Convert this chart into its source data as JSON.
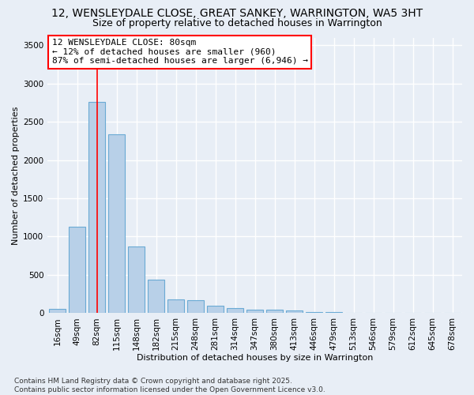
{
  "title": "12, WENSLEYDALE CLOSE, GREAT SANKEY, WARRINGTON, WA5 3HT",
  "subtitle": "Size of property relative to detached houses in Warrington",
  "xlabel": "Distribution of detached houses by size in Warrington",
  "ylabel": "Number of detached properties",
  "categories": [
    "16sqm",
    "49sqm",
    "82sqm",
    "115sqm",
    "148sqm",
    "182sqm",
    "215sqm",
    "248sqm",
    "281sqm",
    "314sqm",
    "347sqm",
    "380sqm",
    "413sqm",
    "446sqm",
    "479sqm",
    "513sqm",
    "546sqm",
    "579sqm",
    "612sqm",
    "645sqm",
    "678sqm"
  ],
  "values": [
    55,
    1130,
    2760,
    2340,
    870,
    440,
    175,
    165,
    95,
    70,
    50,
    45,
    30,
    18,
    10,
    8,
    5,
    3,
    2,
    1,
    1
  ],
  "bar_color": "#b8d0e8",
  "bar_edge_color": "#6aaad4",
  "annotation_line_color": "red",
  "annotation_line_idx": 2,
  "annotation_box_text_line1": "12 WENSLEYDALE CLOSE: 80sqm",
  "annotation_box_text_line2": "← 12% of detached houses are smaller (960)",
  "annotation_box_text_line3": "87% of semi-detached houses are larger (6,946) →",
  "ylim": [
    0,
    3600
  ],
  "yticks": [
    0,
    500,
    1000,
    1500,
    2000,
    2500,
    3000,
    3500
  ],
  "footnote": "Contains HM Land Registry data © Crown copyright and database right 2025.\nContains public sector information licensed under the Open Government Licence v3.0.",
  "bg_color": "#e8eef6",
  "plot_bg_color": "#e8eef6",
  "grid_color": "#ffffff",
  "title_fontsize": 10,
  "subtitle_fontsize": 9,
  "axis_fontsize": 8,
  "tick_fontsize": 7.5,
  "annotation_fontsize": 8,
  "footnote_fontsize": 6.5
}
